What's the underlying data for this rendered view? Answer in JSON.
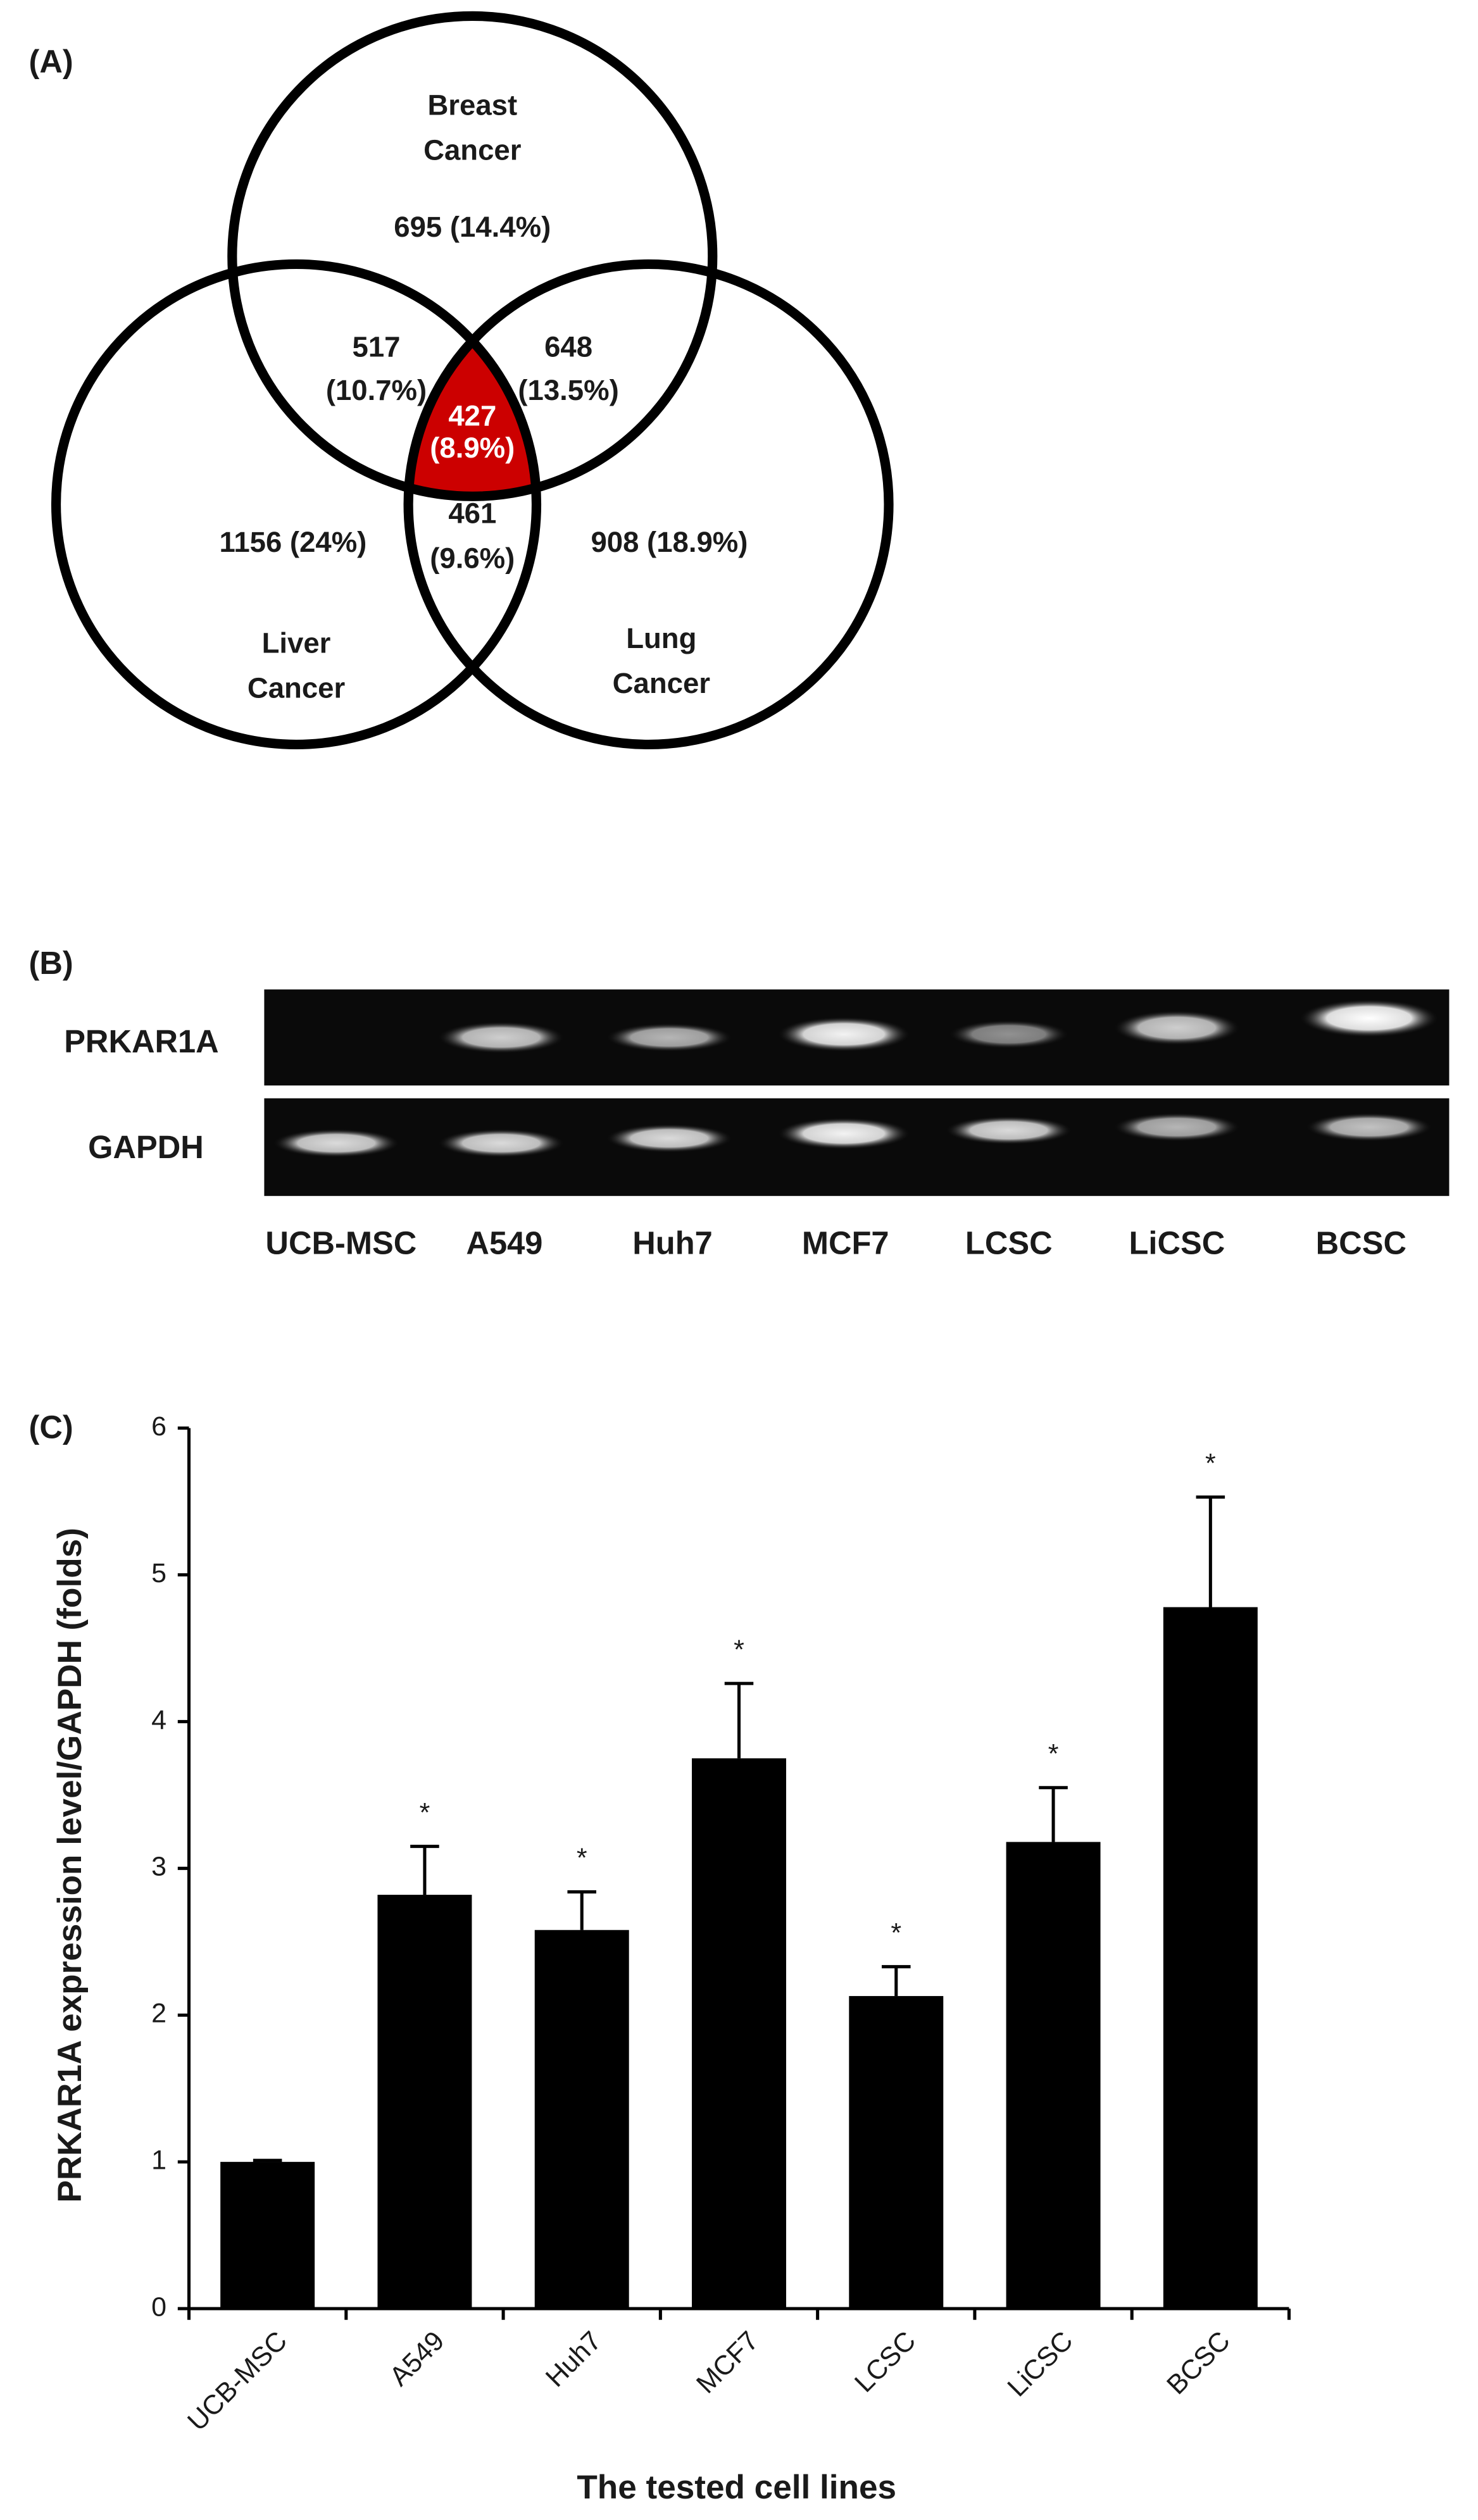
{
  "venn": {
    "panel_label": "(A)",
    "sets": [
      [
        "Breast",
        "Cancer"
      ],
      [
        "Liver",
        "Cancer"
      ],
      [
        "Lung",
        "Cancer"
      ]
    ],
    "regions": {
      "breast_only": "695 (14.4%)",
      "liver_only": "1156 (24%)",
      "lung_only": "908 (18.9%)",
      "breast_liver": [
        "517",
        "(10.7%)"
      ],
      "breast_lung": [
        "648",
        "(13.5%)"
      ],
      "liver_lung": [
        "461",
        "(9.6%)"
      ],
      "all": [
        "427",
        "(8.9%)"
      ]
    }
  },
  "gel": {
    "panel_label": "(B)",
    "rows": [
      "PRKAR1A",
      "GAPDH"
    ],
    "lanes": [
      "UCB-MSC",
      "A549",
      "Huh7",
      "MCF7",
      "LCSC",
      "LiCSC",
      "BCSC"
    ]
  },
  "chart_data": {
    "type": "bar",
    "panel_label": "(C)",
    "categories": [
      "UCB-MSC",
      "A549",
      "Huh7",
      "MCF7",
      "LCSC",
      "LiCSC",
      "BCSC"
    ],
    "values": [
      1.0,
      2.82,
      2.58,
      3.75,
      2.13,
      3.18,
      4.78
    ],
    "errors": [
      0.01,
      0.33,
      0.26,
      0.51,
      0.2,
      0.37,
      0.75
    ],
    "annotations": [
      null,
      "*",
      "*",
      "*",
      "*",
      "*",
      "*"
    ],
    "color": "#000000",
    "ylim": [
      0,
      6
    ],
    "yticks": [
      0,
      1,
      2,
      3,
      4,
      5,
      6
    ],
    "ylabel": "PRKAR1A expression level/GAPDH (folds)",
    "xlabel": "The tested cell lines"
  }
}
